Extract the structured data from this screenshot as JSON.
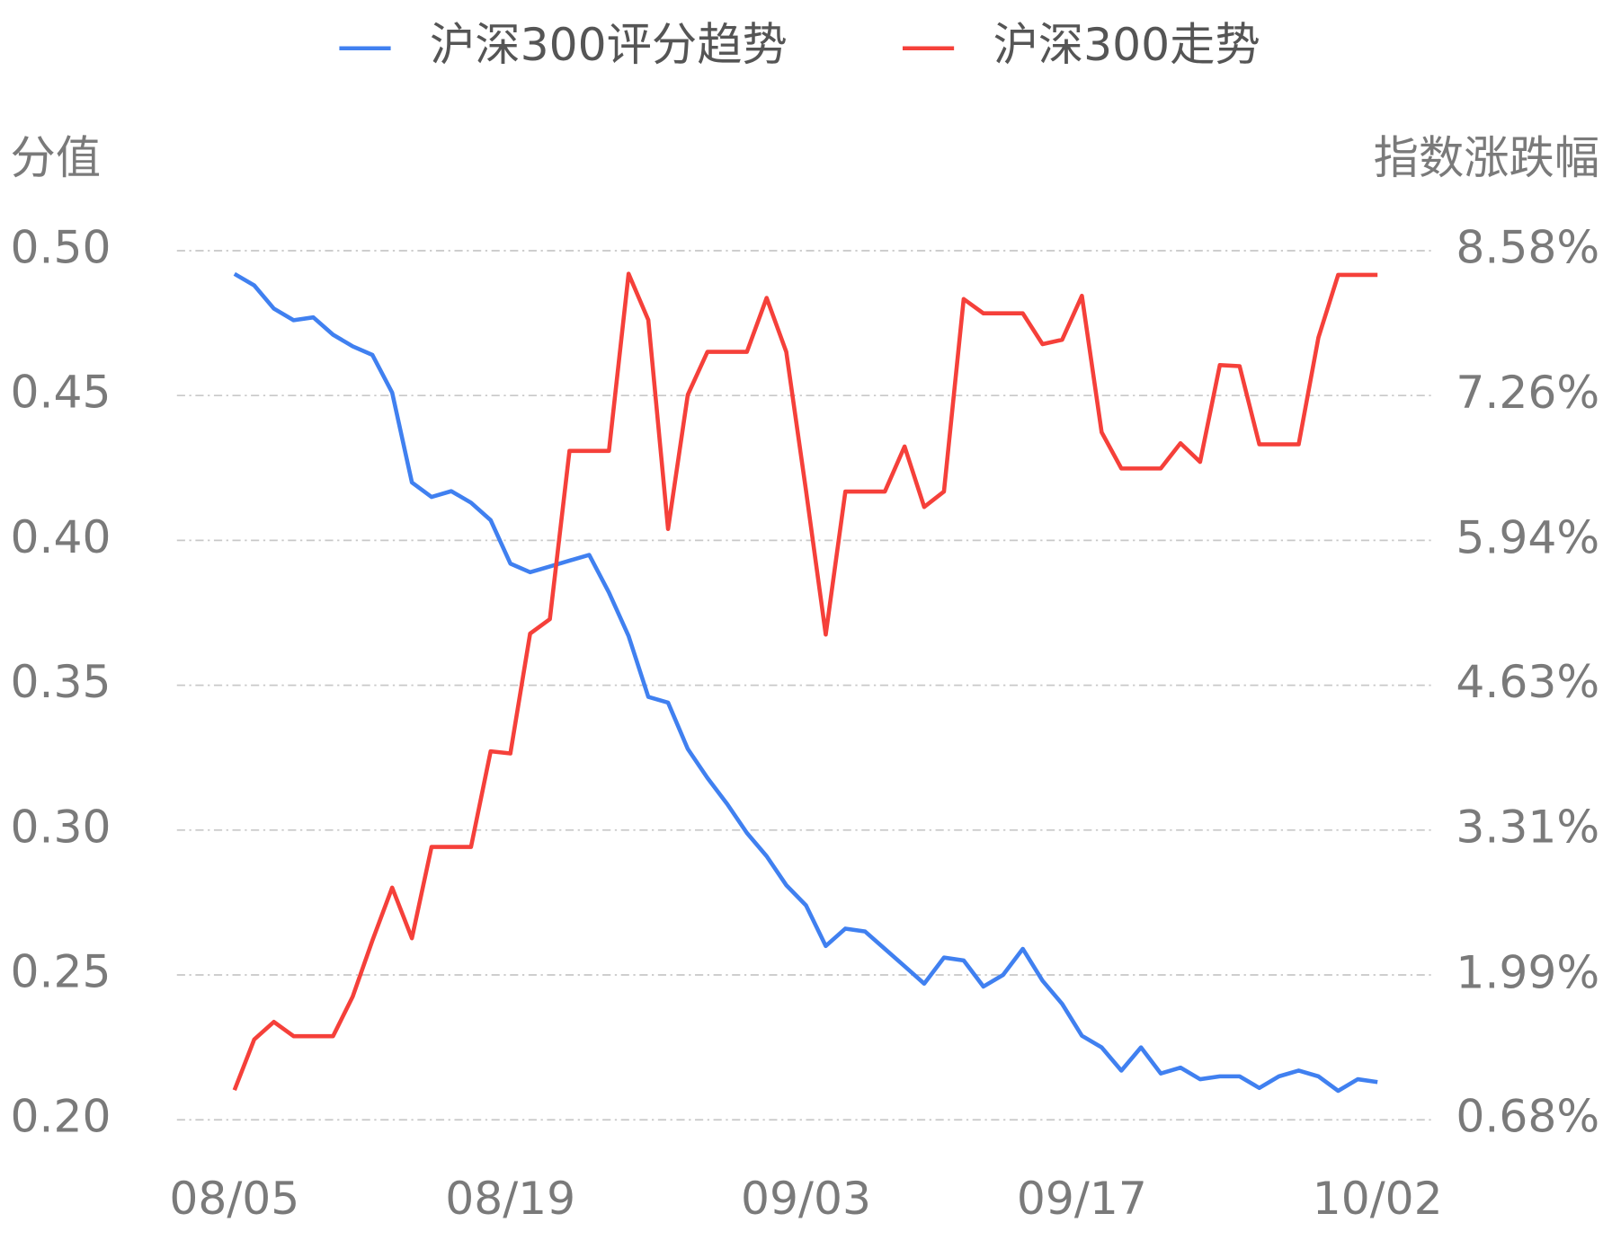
{
  "chart_data": {
    "type": "line",
    "y_label": "分值",
    "y2_label": "指数涨跌幅",
    "categories": [
      "08/05",
      null,
      null,
      null,
      null,
      null,
      null,
      null,
      null,
      null,
      null,
      null,
      null,
      null,
      "08/19",
      null,
      null,
      null,
      null,
      null,
      null,
      null,
      null,
      null,
      null,
      null,
      null,
      null,
      null,
      "09/03",
      null,
      null,
      null,
      null,
      null,
      null,
      null,
      null,
      null,
      null,
      null,
      null,
      null,
      "09/17",
      null,
      null,
      null,
      null,
      null,
      null,
      null,
      null,
      null,
      null,
      null,
      null,
      null,
      null,
      "10/02"
    ],
    "series": [
      {
        "name": "沪深300评分趋势",
        "color": "#4080f0",
        "axis": "y",
        "values": [
          0.492,
          0.488,
          0.48,
          0.476,
          0.477,
          0.471,
          0.467,
          0.464,
          0.451,
          0.42,
          0.415,
          0.417,
          0.413,
          0.407,
          0.392,
          0.389,
          0.391,
          0.393,
          0.395,
          0.382,
          0.367,
          0.346,
          0.344,
          0.328,
          0.318,
          0.309,
          0.299,
          0.291,
          0.281,
          0.274,
          0.26,
          0.266,
          0.265,
          0.259,
          0.253,
          0.247,
          0.256,
          0.255,
          0.246,
          0.25,
          0.259,
          0.248,
          0.24,
          0.229,
          0.225,
          0.217,
          0.225,
          0.216,
          0.218,
          0.214,
          0.215,
          0.215,
          0.211,
          0.215,
          0.217,
          0.215,
          0.21,
          0.214,
          0.213
        ]
      },
      {
        "name": "沪深300走势",
        "color": "#f5403a",
        "axis": "y2",
        "values": [
          0.95,
          1.41,
          1.57,
          1.44,
          1.44,
          1.44,
          1.8,
          2.31,
          2.79,
          2.33,
          3.16,
          3.16,
          3.16,
          4.03,
          4.01,
          5.1,
          5.23,
          6.76,
          6.76,
          6.76,
          8.37,
          7.95,
          6.05,
          7.27,
          7.66,
          7.66,
          7.66,
          8.15,
          7.66,
          6.4,
          5.09,
          6.39,
          6.39,
          6.39,
          6.8,
          6.25,
          6.39,
          8.14,
          8.01,
          8.01,
          8.01,
          7.73,
          7.77,
          8.17,
          6.93,
          6.6,
          6.6,
          6.6,
          6.83,
          6.66,
          7.54,
          7.53,
          6.82,
          6.82,
          6.82,
          7.79,
          8.36,
          8.36,
          8.36
        ]
      }
    ],
    "ylim": [
      0.2,
      0.5
    ],
    "yticks": [
      {
        "value": 0.2,
        "label": "0.20"
      },
      0.25,
      {
        "value": 0.3,
        "label": "0.30"
      },
      0.35,
      {
        "value": 0.4,
        "label": "0.40"
      },
      0.45,
      {
        "value": 0.5,
        "label": "0.50"
      }
    ],
    "y2lim": [
      0.68,
      8.58
    ],
    "y2ticks": [
      {
        "value": 0.68,
        "label": "0.68%"
      },
      {
        "value": 1.99,
        "label": "1.99%"
      },
      {
        "value": 3.31,
        "label": "3.31%"
      },
      {
        "value": 4.63,
        "label": "4.63%"
      },
      {
        "value": 5.94,
        "label": "5.94%"
      },
      {
        "value": 7.26,
        "label": "7.26%"
      },
      {
        "value": 8.58,
        "label": "8.58%"
      }
    ],
    "grid": true,
    "legend": "top"
  }
}
